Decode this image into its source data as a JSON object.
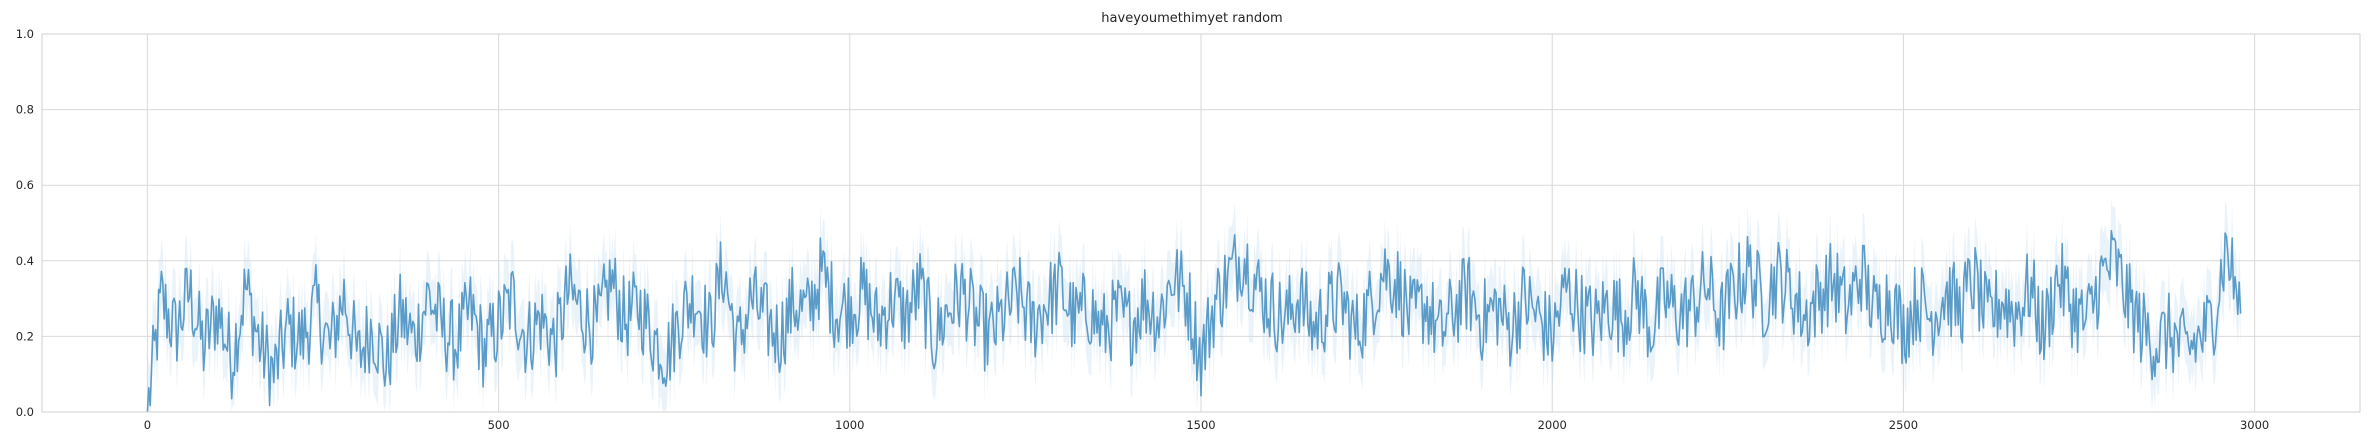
{
  "chart_data": {
    "type": "line",
    "title": "haveyoumethimyet random",
    "xlabel": "",
    "ylabel": "",
    "xlim": [
      -150,
      3150
    ],
    "ylim": [
      0,
      1
    ],
    "x_ticks": [
      0,
      500,
      1000,
      1500,
      2000,
      2500,
      3000
    ],
    "y_ticks": [
      0.0,
      0.2,
      0.4,
      0.6,
      0.8,
      1.0
    ],
    "x_tick_labels": [
      "0",
      "500",
      "1000",
      "1500",
      "2000",
      "2500",
      "3000"
    ],
    "y_tick_labels": [
      "0.0",
      "0.2",
      "0.4",
      "0.6",
      "0.8",
      "1.0"
    ],
    "grid": true,
    "legend": "none",
    "colors": {
      "line": "#5b9bc8",
      "band": "#c6dcf0",
      "grid": "#d9d9d9",
      "spine": "#d0d0d0"
    },
    "series": [
      {
        "x": [
          0,
          20,
          40,
          60,
          80,
          100,
          120,
          140,
          160,
          180,
          200,
          220,
          240,
          260,
          280,
          300,
          320,
          340,
          360,
          380,
          400,
          420,
          440,
          460,
          480,
          500,
          520,
          540,
          560,
          580,
          600,
          620,
          640,
          660,
          680,
          700,
          720,
          740,
          760,
          780,
          800,
          820,
          840,
          860,
          880,
          900,
          920,
          940,
          960,
          980,
          1000,
          1020,
          1040,
          1060,
          1080,
          1100,
          1120,
          1140,
          1160,
          1180,
          1200,
          1220,
          1240,
          1260,
          1280,
          1300,
          1320,
          1340,
          1360,
          1380,
          1400,
          1420,
          1440,
          1460,
          1480,
          1500,
          1520,
          1540,
          1560,
          1580,
          1600,
          1620,
          1640,
          1660,
          1680,
          1700,
          1720,
          1740,
          1760,
          1780,
          1800,
          1820,
          1840,
          1860,
          1880,
          1900,
          1920,
          1940,
          1960,
          1980,
          2000,
          2020,
          2040,
          2060,
          2080,
          2100,
          2120,
          2140,
          2160,
          2180,
          2200,
          2220,
          2240,
          2260,
          2280,
          2300,
          2320,
          2340,
          2360,
          2380,
          2400,
          2420,
          2440,
          2460,
          2480,
          2500,
          2520,
          2540,
          2560,
          2580,
          2600,
          2620,
          2640,
          2660,
          2680,
          2700,
          2720,
          2740,
          2760,
          2780,
          2800,
          2820,
          2840,
          2860,
          2880,
          2900,
          2920,
          2940,
          2960,
          2980
        ],
        "values": [
          0.0,
          0.3,
          0.21,
          0.32,
          0.17,
          0.27,
          0.14,
          0.33,
          0.18,
          0.1,
          0.22,
          0.19,
          0.28,
          0.17,
          0.31,
          0.14,
          0.23,
          0.12,
          0.26,
          0.19,
          0.31,
          0.22,
          0.18,
          0.27,
          0.16,
          0.23,
          0.3,
          0.19,
          0.25,
          0.18,
          0.32,
          0.26,
          0.22,
          0.35,
          0.24,
          0.28,
          0.2,
          0.15,
          0.26,
          0.31,
          0.22,
          0.38,
          0.17,
          0.3,
          0.24,
          0.2,
          0.29,
          0.26,
          0.37,
          0.27,
          0.28,
          0.31,
          0.23,
          0.3,
          0.25,
          0.33,
          0.19,
          0.27,
          0.32,
          0.24,
          0.2,
          0.26,
          0.31,
          0.23,
          0.29,
          0.33,
          0.24,
          0.28,
          0.21,
          0.26,
          0.23,
          0.3,
          0.25,
          0.36,
          0.31,
          0.14,
          0.29,
          0.36,
          0.42,
          0.33,
          0.28,
          0.24,
          0.31,
          0.22,
          0.27,
          0.3,
          0.21,
          0.28,
          0.38,
          0.34,
          0.24,
          0.29,
          0.2,
          0.27,
          0.32,
          0.24,
          0.28,
          0.22,
          0.3,
          0.25,
          0.2,
          0.33,
          0.27,
          0.23,
          0.29,
          0.25,
          0.32,
          0.22,
          0.3,
          0.26,
          0.28,
          0.34,
          0.24,
          0.33,
          0.38,
          0.29,
          0.36,
          0.32,
          0.25,
          0.31,
          0.35,
          0.27,
          0.37,
          0.26,
          0.31,
          0.22,
          0.3,
          0.25,
          0.32,
          0.27,
          0.35,
          0.24,
          0.3,
          0.26,
          0.33,
          0.21,
          0.36,
          0.28,
          0.23,
          0.35,
          0.4,
          0.29,
          0.22,
          0.18,
          0.21,
          0.16,
          0.19,
          0.24,
          0.44,
          0.26
        ]
      }
    ],
    "band_halfwidth": 0.085
  }
}
